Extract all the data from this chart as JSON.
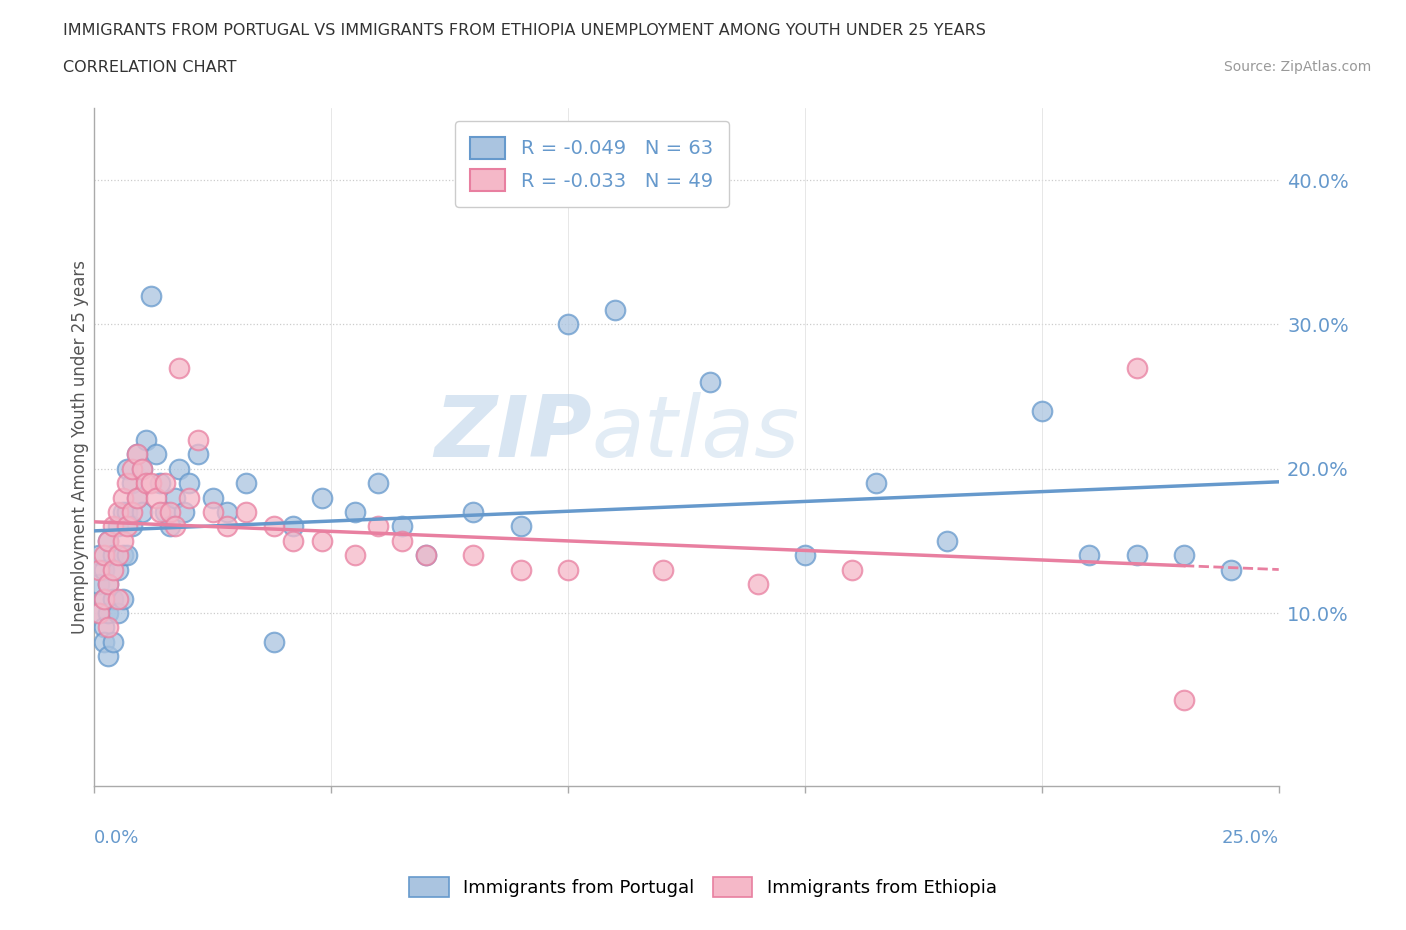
{
  "title_line1": "IMMIGRANTS FROM PORTUGAL VS IMMIGRANTS FROM ETHIOPIA UNEMPLOYMENT AMONG YOUTH UNDER 25 YEARS",
  "title_line2": "CORRELATION CHART",
  "source": "Source: ZipAtlas.com",
  "ylabel": "Unemployment Among Youth under 25 years",
  "right_yticks": [
    "10.0%",
    "20.0%",
    "30.0%",
    "40.0%"
  ],
  "right_ytick_vals": [
    0.1,
    0.2,
    0.3,
    0.4
  ],
  "xlim": [
    0.0,
    0.25
  ],
  "ylim": [
    -0.02,
    0.45
  ],
  "portugal_color": "#6699cc",
  "portugal_color_fill": "#aac4e0",
  "ethiopia_color": "#e87fa0",
  "ethiopia_color_fill": "#f5b8c8",
  "portugal_R": "-0.049",
  "portugal_N": "63",
  "ethiopia_R": "-0.033",
  "ethiopia_N": "49",
  "legend_label_portugal": "Immigrants from Portugal",
  "legend_label_ethiopia": "Immigrants from Ethiopia",
  "watermark_zip": "ZIP",
  "watermark_atlas": "atlas",
  "portugal_x": [
    0.001,
    0.001,
    0.001,
    0.002,
    0.002,
    0.002,
    0.002,
    0.003,
    0.003,
    0.003,
    0.003,
    0.004,
    0.004,
    0.004,
    0.005,
    0.005,
    0.005,
    0.006,
    0.006,
    0.006,
    0.007,
    0.007,
    0.007,
    0.008,
    0.008,
    0.009,
    0.009,
    0.01,
    0.01,
    0.011,
    0.012,
    0.013,
    0.014,
    0.015,
    0.016,
    0.017,
    0.018,
    0.019,
    0.02,
    0.022,
    0.025,
    0.028,
    0.032,
    0.038,
    0.042,
    0.048,
    0.055,
    0.06,
    0.065,
    0.07,
    0.08,
    0.09,
    0.1,
    0.11,
    0.13,
    0.15,
    0.165,
    0.18,
    0.2,
    0.21,
    0.22,
    0.23,
    0.24
  ],
  "portugal_y": [
    0.14,
    0.12,
    0.1,
    0.13,
    0.11,
    0.09,
    0.08,
    0.15,
    0.12,
    0.1,
    0.07,
    0.14,
    0.11,
    0.08,
    0.16,
    0.13,
    0.1,
    0.17,
    0.14,
    0.11,
    0.2,
    0.17,
    0.14,
    0.19,
    0.16,
    0.21,
    0.18,
    0.2,
    0.17,
    0.22,
    0.32,
    0.21,
    0.19,
    0.17,
    0.16,
    0.18,
    0.2,
    0.17,
    0.19,
    0.21,
    0.18,
    0.17,
    0.19,
    0.08,
    0.16,
    0.18,
    0.17,
    0.19,
    0.16,
    0.14,
    0.17,
    0.16,
    0.3,
    0.31,
    0.26,
    0.14,
    0.19,
    0.15,
    0.24,
    0.14,
    0.14,
    0.14,
    0.13
  ],
  "ethiopia_x": [
    0.001,
    0.001,
    0.002,
    0.002,
    0.003,
    0.003,
    0.003,
    0.004,
    0.004,
    0.005,
    0.005,
    0.005,
    0.006,
    0.006,
    0.007,
    0.007,
    0.008,
    0.008,
    0.009,
    0.009,
    0.01,
    0.011,
    0.012,
    0.013,
    0.014,
    0.015,
    0.016,
    0.017,
    0.018,
    0.02,
    0.022,
    0.025,
    0.028,
    0.032,
    0.038,
    0.042,
    0.048,
    0.055,
    0.06,
    0.065,
    0.07,
    0.08,
    0.09,
    0.1,
    0.12,
    0.14,
    0.16,
    0.22,
    0.23
  ],
  "ethiopia_y": [
    0.13,
    0.1,
    0.14,
    0.11,
    0.15,
    0.12,
    0.09,
    0.16,
    0.13,
    0.17,
    0.14,
    0.11,
    0.18,
    0.15,
    0.19,
    0.16,
    0.2,
    0.17,
    0.21,
    0.18,
    0.2,
    0.19,
    0.19,
    0.18,
    0.17,
    0.19,
    0.17,
    0.16,
    0.27,
    0.18,
    0.22,
    0.17,
    0.16,
    0.17,
    0.16,
    0.15,
    0.15,
    0.14,
    0.16,
    0.15,
    0.14,
    0.14,
    0.13,
    0.13,
    0.13,
    0.12,
    0.13,
    0.27,
    0.04
  ]
}
